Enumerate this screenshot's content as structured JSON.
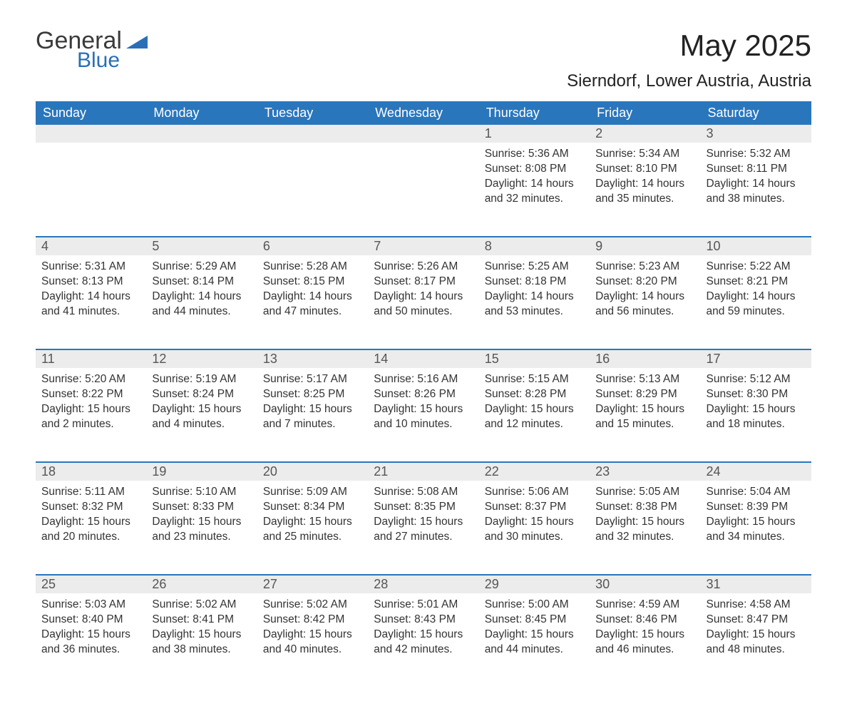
{
  "logo": {
    "word1": "General",
    "word2": "Blue"
  },
  "title": "May 2025",
  "location": "Sierndorf, Lower Austria, Austria",
  "colors": {
    "header_bg": "#2a76bd",
    "header_text": "#ffffff",
    "daynum_bg": "#ececec",
    "row_border": "#2a76bd",
    "body_text": "#333333",
    "logo_blue": "#2a6fb5"
  },
  "columns": [
    "Sunday",
    "Monday",
    "Tuesday",
    "Wednesday",
    "Thursday",
    "Friday",
    "Saturday"
  ],
  "label_sunrise": "Sunrise: ",
  "label_sunset": "Sunset: ",
  "label_daylight": "Daylight: ",
  "weeks": [
    [
      null,
      null,
      null,
      null,
      {
        "n": "1",
        "sunrise": "5:36 AM",
        "sunset": "8:08 PM",
        "dl1": "14 hours",
        "dl2": "and 32 minutes."
      },
      {
        "n": "2",
        "sunrise": "5:34 AM",
        "sunset": "8:10 PM",
        "dl1": "14 hours",
        "dl2": "and 35 minutes."
      },
      {
        "n": "3",
        "sunrise": "5:32 AM",
        "sunset": "8:11 PM",
        "dl1": "14 hours",
        "dl2": "and 38 minutes."
      }
    ],
    [
      {
        "n": "4",
        "sunrise": "5:31 AM",
        "sunset": "8:13 PM",
        "dl1": "14 hours",
        "dl2": "and 41 minutes."
      },
      {
        "n": "5",
        "sunrise": "5:29 AM",
        "sunset": "8:14 PM",
        "dl1": "14 hours",
        "dl2": "and 44 minutes."
      },
      {
        "n": "6",
        "sunrise": "5:28 AM",
        "sunset": "8:15 PM",
        "dl1": "14 hours",
        "dl2": "and 47 minutes."
      },
      {
        "n": "7",
        "sunrise": "5:26 AM",
        "sunset": "8:17 PM",
        "dl1": "14 hours",
        "dl2": "and 50 minutes."
      },
      {
        "n": "8",
        "sunrise": "5:25 AM",
        "sunset": "8:18 PM",
        "dl1": "14 hours",
        "dl2": "and 53 minutes."
      },
      {
        "n": "9",
        "sunrise": "5:23 AM",
        "sunset": "8:20 PM",
        "dl1": "14 hours",
        "dl2": "and 56 minutes."
      },
      {
        "n": "10",
        "sunrise": "5:22 AM",
        "sunset": "8:21 PM",
        "dl1": "14 hours",
        "dl2": "and 59 minutes."
      }
    ],
    [
      {
        "n": "11",
        "sunrise": "5:20 AM",
        "sunset": "8:22 PM",
        "dl1": "15 hours",
        "dl2": "and 2 minutes."
      },
      {
        "n": "12",
        "sunrise": "5:19 AM",
        "sunset": "8:24 PM",
        "dl1": "15 hours",
        "dl2": "and 4 minutes."
      },
      {
        "n": "13",
        "sunrise": "5:17 AM",
        "sunset": "8:25 PM",
        "dl1": "15 hours",
        "dl2": "and 7 minutes."
      },
      {
        "n": "14",
        "sunrise": "5:16 AM",
        "sunset": "8:26 PM",
        "dl1": "15 hours",
        "dl2": "and 10 minutes."
      },
      {
        "n": "15",
        "sunrise": "5:15 AM",
        "sunset": "8:28 PM",
        "dl1": "15 hours",
        "dl2": "and 12 minutes."
      },
      {
        "n": "16",
        "sunrise": "5:13 AM",
        "sunset": "8:29 PM",
        "dl1": "15 hours",
        "dl2": "and 15 minutes."
      },
      {
        "n": "17",
        "sunrise": "5:12 AM",
        "sunset": "8:30 PM",
        "dl1": "15 hours",
        "dl2": "and 18 minutes."
      }
    ],
    [
      {
        "n": "18",
        "sunrise": "5:11 AM",
        "sunset": "8:32 PM",
        "dl1": "15 hours",
        "dl2": "and 20 minutes."
      },
      {
        "n": "19",
        "sunrise": "5:10 AM",
        "sunset": "8:33 PM",
        "dl1": "15 hours",
        "dl2": "and 23 minutes."
      },
      {
        "n": "20",
        "sunrise": "5:09 AM",
        "sunset": "8:34 PM",
        "dl1": "15 hours",
        "dl2": "and 25 minutes."
      },
      {
        "n": "21",
        "sunrise": "5:08 AM",
        "sunset": "8:35 PM",
        "dl1": "15 hours",
        "dl2": "and 27 minutes."
      },
      {
        "n": "22",
        "sunrise": "5:06 AM",
        "sunset": "8:37 PM",
        "dl1": "15 hours",
        "dl2": "and 30 minutes."
      },
      {
        "n": "23",
        "sunrise": "5:05 AM",
        "sunset": "8:38 PM",
        "dl1": "15 hours",
        "dl2": "and 32 minutes."
      },
      {
        "n": "24",
        "sunrise": "5:04 AM",
        "sunset": "8:39 PM",
        "dl1": "15 hours",
        "dl2": "and 34 minutes."
      }
    ],
    [
      {
        "n": "25",
        "sunrise": "5:03 AM",
        "sunset": "8:40 PM",
        "dl1": "15 hours",
        "dl2": "and 36 minutes."
      },
      {
        "n": "26",
        "sunrise": "5:02 AM",
        "sunset": "8:41 PM",
        "dl1": "15 hours",
        "dl2": "and 38 minutes."
      },
      {
        "n": "27",
        "sunrise": "5:02 AM",
        "sunset": "8:42 PM",
        "dl1": "15 hours",
        "dl2": "and 40 minutes."
      },
      {
        "n": "28",
        "sunrise": "5:01 AM",
        "sunset": "8:43 PM",
        "dl1": "15 hours",
        "dl2": "and 42 minutes."
      },
      {
        "n": "29",
        "sunrise": "5:00 AM",
        "sunset": "8:45 PM",
        "dl1": "15 hours",
        "dl2": "and 44 minutes."
      },
      {
        "n": "30",
        "sunrise": "4:59 AM",
        "sunset": "8:46 PM",
        "dl1": "15 hours",
        "dl2": "and 46 minutes."
      },
      {
        "n": "31",
        "sunrise": "4:58 AM",
        "sunset": "8:47 PM",
        "dl1": "15 hours",
        "dl2": "and 48 minutes."
      }
    ]
  ]
}
